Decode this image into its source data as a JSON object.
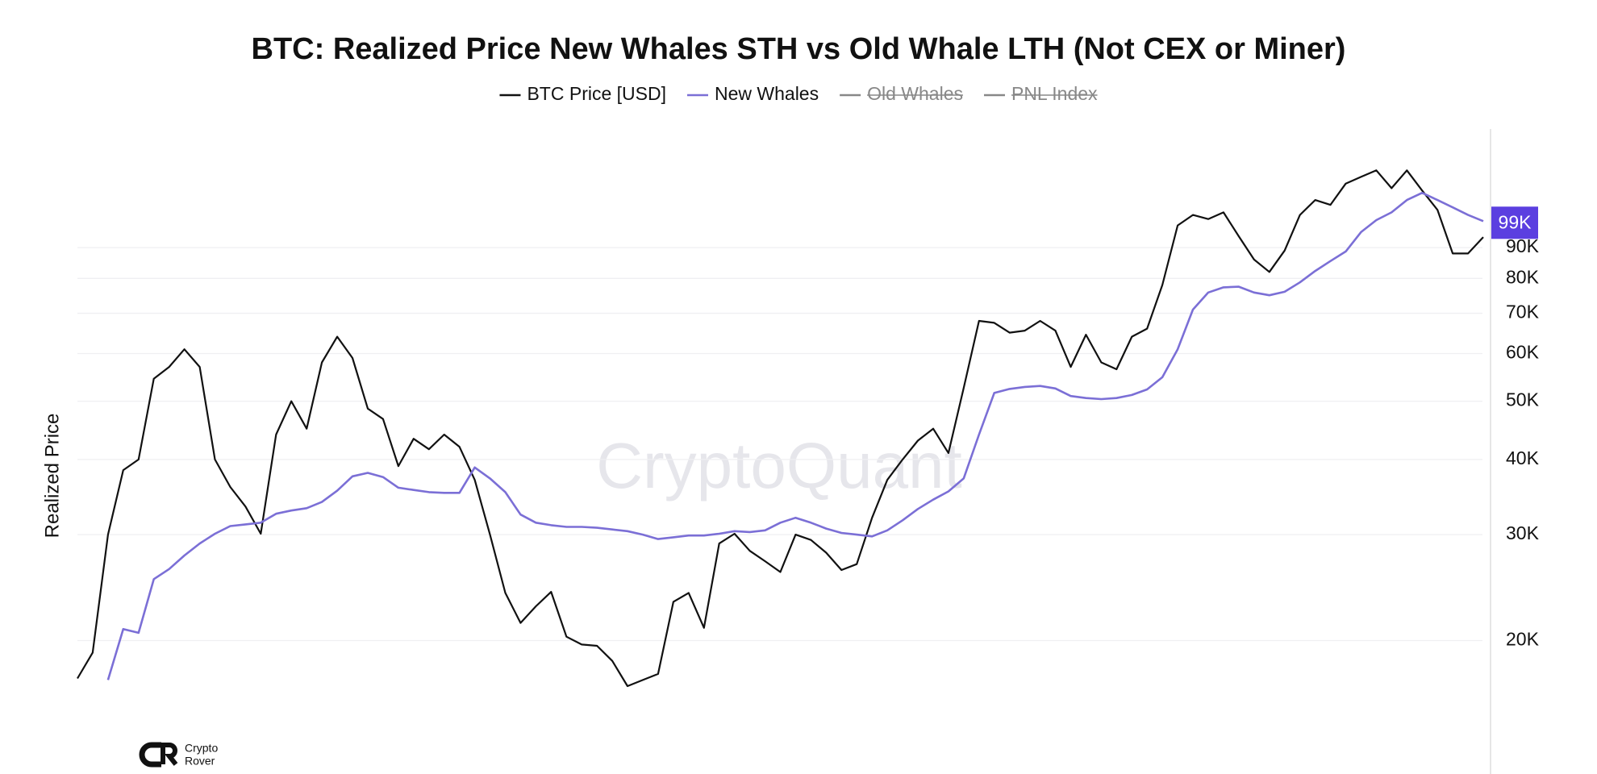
{
  "chart_data": {
    "type": "line",
    "title": "BTC: Realized Price New Whales STH vs Old Whale LTH (Not CEX or Miner)",
    "y_axis_label": "Realized Price",
    "watermark": "CryptoQuant",
    "logo_text": [
      "Crypto",
      "Rover"
    ],
    "log_scale": true,
    "grid": true,
    "ylim": [
      12000,
      140000
    ],
    "yticks": [
      {
        "value": 20000,
        "label": "20K"
      },
      {
        "value": 30000,
        "label": "30K"
      },
      {
        "value": 40000,
        "label": "40K"
      },
      {
        "value": 50000,
        "label": "50K"
      },
      {
        "value": 60000,
        "label": "60K"
      },
      {
        "value": 70000,
        "label": "70K"
      },
      {
        "value": 80000,
        "label": "80K"
      },
      {
        "value": 90000,
        "label": "90K"
      }
    ],
    "legend_hidden": [
      {
        "name": "Old Whales",
        "color": "#888888"
      },
      {
        "name": "PNL Index",
        "color": "#888888"
      }
    ],
    "categories": [
      null,
      null,
      null,
      null,
      null,
      null,
      null,
      null,
      null,
      null,
      null,
      null,
      null,
      null,
      null,
      null,
      null,
      null,
      null,
      null,
      null,
      null,
      null,
      null,
      null,
      null,
      null,
      null,
      null,
      null,
      null,
      null,
      null,
      null,
      null,
      null,
      null,
      null,
      null,
      null,
      null,
      null,
      null,
      null,
      null,
      null,
      null,
      null,
      null,
      null,
      null,
      null,
      null,
      null,
      null,
      null,
      null,
      null,
      null,
      null,
      null,
      null,
      null,
      null,
      null,
      null,
      null,
      null,
      null,
      null,
      null,
      null,
      null,
      null,
      null,
      null,
      null,
      null,
      null,
      null,
      null,
      null,
      null,
      null,
      null,
      null,
      null,
      null,
      null,
      null,
      null,
      null,
      null
    ],
    "series": [
      {
        "name": "BTC Price [USD]",
        "color": "#111111",
        "values": [
          17300,
          19100,
          30000,
          38400,
          40000,
          54500,
          57000,
          61000,
          57000,
          40000,
          36000,
          33400,
          30100,
          44000,
          50000,
          45000,
          58000,
          64000,
          59000,
          48600,
          46700,
          39000,
          43300,
          41600,
          44000,
          42000,
          37000,
          30000,
          24000,
          21400,
          22800,
          24100,
          20300,
          19700,
          19600,
          18500,
          16800,
          17200,
          17600,
          23200,
          24000,
          21000,
          29000,
          30100,
          28200,
          27100,
          26000,
          30000,
          29400,
          28000,
          26200,
          26800,
          32000,
          37000,
          40000,
          43000,
          45000,
          41000,
          52600,
          68000,
          67500,
          65000,
          65500,
          68000,
          65500,
          57000,
          64500,
          58000,
          56500,
          64000,
          66000,
          78000,
          98000,
          102000,
          100400,
          103000,
          94000,
          86000,
          82000,
          89000,
          102000,
          108000,
          106000,
          115000,
          118000,
          121000,
          113000,
          121000,
          112000,
          104000,
          88000,
          88000,
          93700
        ]
      },
      {
        "name": "New Whales",
        "color": "#7b6fd6",
        "current_value": {
          "value": 99000,
          "label": "99K"
        },
        "values": [
          null,
          null,
          17200,
          20900,
          20600,
          25300,
          26300,
          27700,
          29000,
          30100,
          31000,
          31200,
          31400,
          32500,
          32900,
          33200,
          34000,
          35500,
          37500,
          38000,
          37400,
          35900,
          35600,
          35300,
          35200,
          35200,
          38800,
          37200,
          35300,
          32400,
          31400,
          31100,
          30900,
          30900,
          30800,
          30600,
          30400,
          30000,
          29500,
          29700,
          29900,
          29900,
          30100,
          30400,
          30300,
          30500,
          31400,
          32000,
          31400,
          30700,
          30200,
          30000,
          29800,
          30500,
          31700,
          33100,
          34300,
          35400,
          37200,
          44000,
          51600,
          52400,
          52800,
          53000,
          52500,
          51000,
          50600,
          50400,
          50600,
          51200,
          52300,
          54800,
          61000,
          71000,
          75800,
          77300,
          77500,
          75800,
          75000,
          76000,
          78800,
          82300,
          85500,
          88700,
          95500,
          100000,
          103000,
          108000,
          111000,
          108000,
          105000,
          102000,
          99600
        ]
      }
    ]
  }
}
